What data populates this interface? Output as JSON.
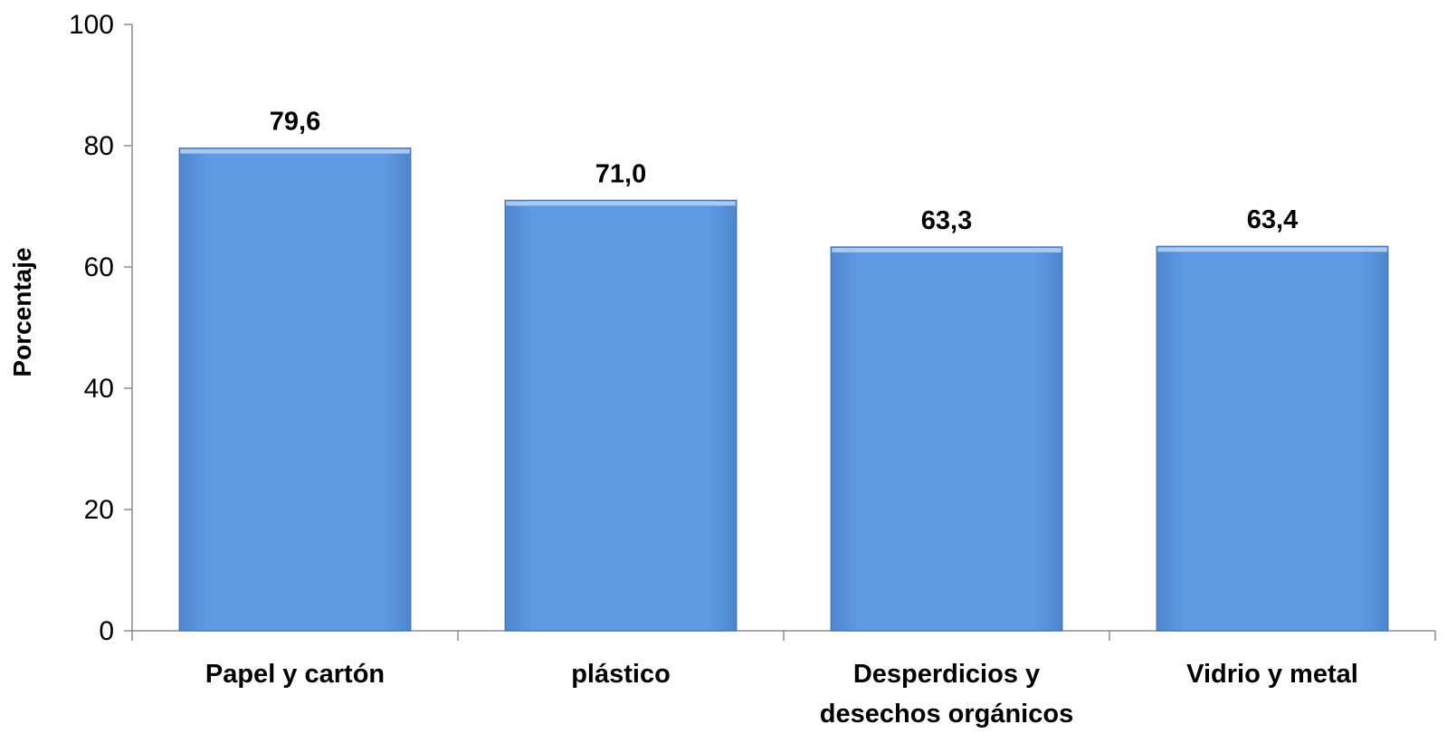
{
  "chart_data": {
    "type": "bar",
    "title": "",
    "xlabel": "",
    "ylabel": "Porcentaje",
    "categories": [
      [
        "Papel y cartón"
      ],
      [
        "plástico"
      ],
      [
        "Desperdicios y",
        "desechos orgánicos"
      ],
      [
        "Vidrio y metal"
      ]
    ],
    "values": [
      79.6,
      71.0,
      63.3,
      63.4
    ],
    "value_labels": [
      "79,6",
      "71,0",
      "63,3",
      "63,4"
    ],
    "ylim": [
      0,
      100
    ],
    "yticks": [
      0,
      20,
      40,
      60,
      80,
      100
    ],
    "grid": false,
    "legend": "none",
    "colors": {
      "bar": "#5b97df",
      "bar_edge": "#3f72b5",
      "bar_top": "#a9c9f0",
      "axis": "#8c8c8c"
    }
  }
}
